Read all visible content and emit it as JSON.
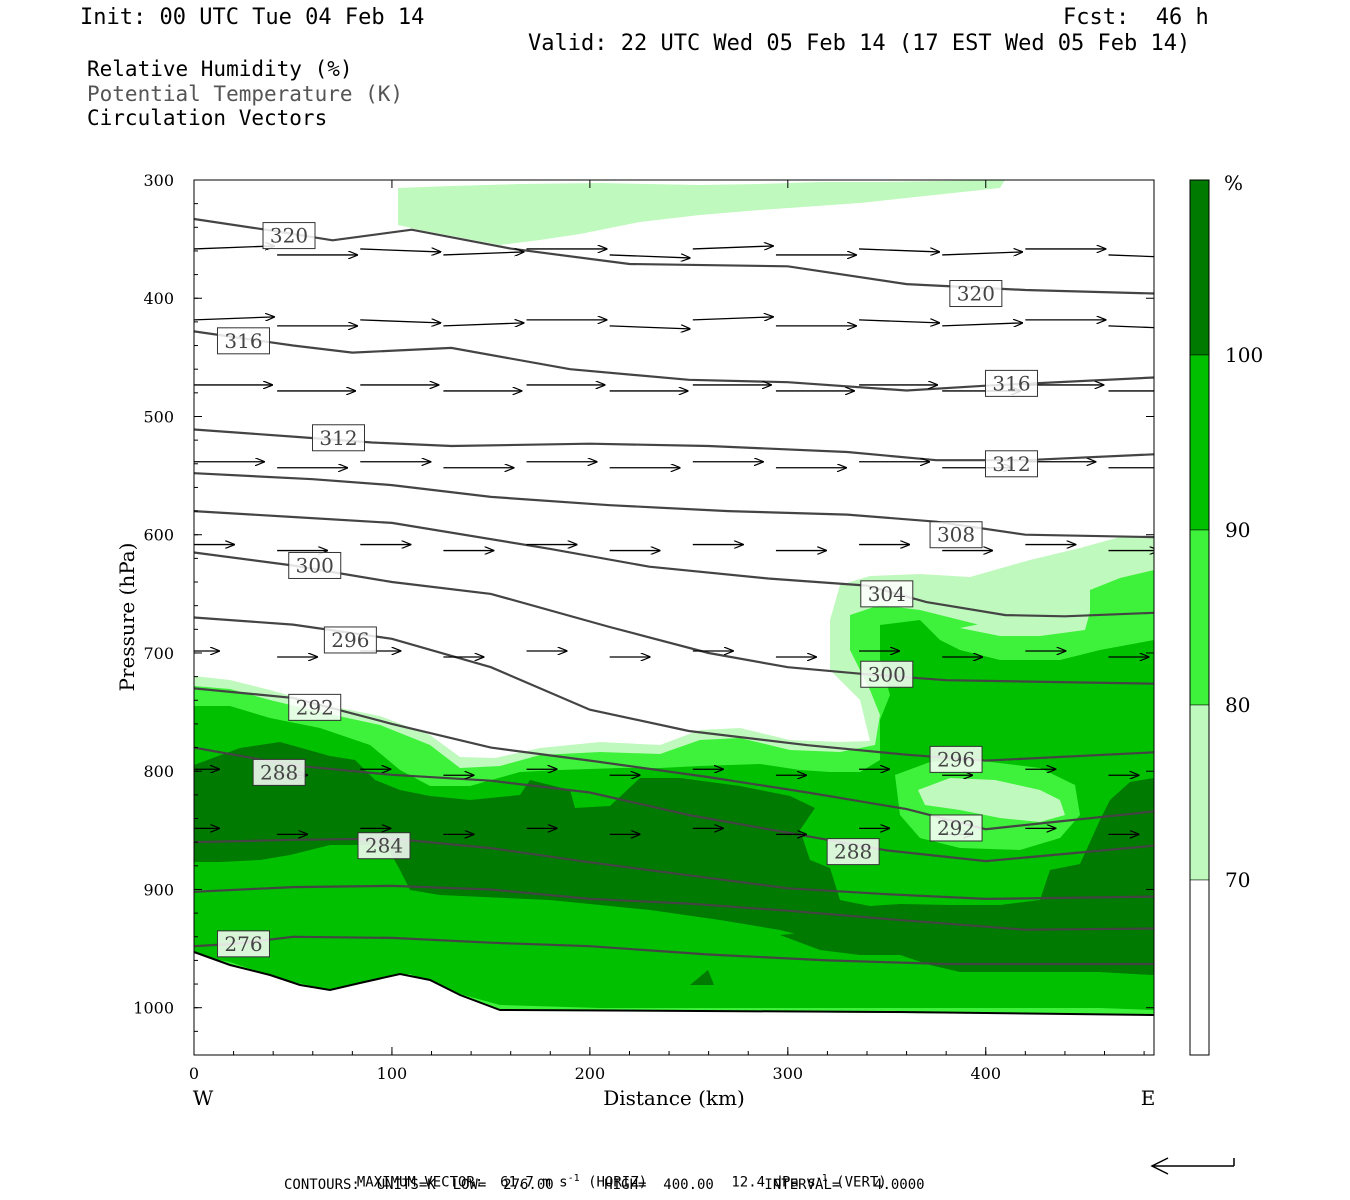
{
  "header": {
    "init": "Init: 00 UTC Tue 04 Feb 14",
    "fcst": "Fcst:  46 h",
    "valid": "Valid: 22 UTC Wed 05 Feb 14 (17 EST Wed 05 Feb 14)"
  },
  "fields": [
    {
      "label": "Relative Humidity (%)",
      "color": "#000000"
    },
    {
      "label": "Potential Temperature (K)",
      "color": "#555555"
    },
    {
      "label": "Circulation Vectors",
      "color": "#000000"
    }
  ],
  "chart_data": {
    "type": "contour",
    "xlabel": "Distance (km)",
    "ylabel": "Pressure (hPa)",
    "xlim": [
      0,
      485
    ],
    "ylim": [
      300,
      1040
    ],
    "x_ticks": [
      0,
      100,
      200,
      300,
      400
    ],
    "y_ticks": [
      300,
      400,
      500,
      600,
      700,
      800,
      900,
      1000
    ],
    "x_end_labels": {
      "left": "W",
      "right": "E"
    },
    "colorbar": {
      "unit": "%",
      "levels": [
        70,
        80,
        90,
        100
      ],
      "colors": [
        "#ffffff",
        "#c0f9bd",
        "#3ef23b",
        "#00c000",
        "#007a00"
      ]
    },
    "theta_contours": [
      {
        "label": "320",
        "points": [
          [
            0,
            333
          ],
          [
            40,
            343
          ],
          [
            70,
            351
          ],
          [
            110,
            342
          ],
          [
            160,
            358
          ],
          [
            220,
            371
          ],
          [
            300,
            373
          ],
          [
            360,
            388
          ],
          [
            420,
            393
          ],
          [
            485,
            396
          ]
        ],
        "labels_at": [
          [
            48,
            347
          ],
          [
            395,
            396
          ]
        ]
      },
      {
        "label": "316",
        "points": [
          [
            0,
            428
          ],
          [
            50,
            440
          ],
          [
            80,
            446
          ],
          [
            130,
            442
          ],
          [
            190,
            460
          ],
          [
            250,
            469
          ],
          [
            300,
            471
          ],
          [
            360,
            478
          ],
          [
            400,
            474
          ],
          [
            485,
            467
          ]
        ],
        "labels_at": [
          [
            25,
            436
          ],
          [
            413,
            472
          ]
        ]
      },
      {
        "label": "312",
        "points": [
          [
            0,
            511
          ],
          [
            50,
            517
          ],
          [
            90,
            522
          ],
          [
            130,
            525
          ],
          [
            200,
            523
          ],
          [
            260,
            525
          ],
          [
            330,
            530
          ],
          [
            375,
            537
          ],
          [
            420,
            537
          ],
          [
            485,
            532
          ]
        ],
        "labels_at": [
          [
            73,
            518
          ],
          [
            413,
            540
          ]
        ]
      },
      {
        "label": "308",
        "points": [
          [
            0,
            548
          ],
          [
            60,
            553
          ],
          [
            100,
            558
          ],
          [
            150,
            568
          ],
          [
            210,
            575
          ],
          [
            270,
            580
          ],
          [
            330,
            583
          ],
          [
            375,
            589
          ],
          [
            420,
            600
          ],
          [
            485,
            602
          ]
        ],
        "labels_at": [
          [
            385,
            600
          ]
        ]
      },
      {
        "label": "304",
        "points": [
          [
            0,
            580
          ],
          [
            50,
            585
          ],
          [
            100,
            590
          ],
          [
            180,
            612
          ],
          [
            230,
            627
          ],
          [
            290,
            637
          ],
          [
            340,
            643
          ],
          [
            370,
            657
          ],
          [
            410,
            668
          ],
          [
            440,
            669
          ],
          [
            485,
            666
          ]
        ],
        "labels_at": [
          [
            350,
            650
          ]
        ]
      },
      {
        "label": "300",
        "points": [
          [
            0,
            615
          ],
          [
            50,
            626
          ],
          [
            100,
            640
          ],
          [
            150,
            650
          ],
          [
            210,
            678
          ],
          [
            260,
            700
          ],
          [
            300,
            712
          ],
          [
            340,
            718
          ],
          [
            380,
            723
          ],
          [
            485,
            726
          ]
        ],
        "labels_at": [
          [
            61,
            626
          ],
          [
            350,
            718
          ]
        ]
      },
      {
        "label": "296",
        "points": [
          [
            0,
            670
          ],
          [
            50,
            676
          ],
          [
            100,
            688
          ],
          [
            150,
            712
          ],
          [
            200,
            748
          ],
          [
            250,
            766
          ],
          [
            310,
            778
          ],
          [
            360,
            786
          ],
          [
            400,
            791
          ],
          [
            485,
            784
          ]
        ],
        "labels_at": [
          [
            79,
            689
          ],
          [
            385,
            790
          ]
        ]
      },
      {
        "label": "292",
        "points": [
          [
            0,
            730
          ],
          [
            50,
            738
          ],
          [
            100,
            760
          ],
          [
            150,
            780
          ],
          [
            200,
            791
          ],
          [
            260,
            805
          ],
          [
            310,
            818
          ],
          [
            360,
            832
          ],
          [
            400,
            849
          ],
          [
            485,
            834
          ]
        ],
        "labels_at": [
          [
            61,
            746
          ],
          [
            385,
            848
          ]
        ]
      },
      {
        "label": "288",
        "points": [
          [
            0,
            780
          ],
          [
            50,
            795
          ],
          [
            100,
            803
          ],
          [
            150,
            808
          ],
          [
            200,
            818
          ],
          [
            250,
            837
          ],
          [
            300,
            852
          ],
          [
            350,
            867
          ],
          [
            400,
            876
          ],
          [
            485,
            863
          ]
        ],
        "labels_at": [
          [
            43,
            801
          ],
          [
            333,
            868
          ]
        ]
      },
      {
        "label": "284",
        "points": [
          [
            0,
            860
          ],
          [
            50,
            858
          ],
          [
            100,
            857
          ],
          [
            150,
            865
          ],
          [
            200,
            877
          ],
          [
            250,
            888
          ],
          [
            300,
            899
          ],
          [
            350,
            904
          ],
          [
            400,
            908
          ],
          [
            485,
            906
          ]
        ],
        "labels_at": [
          [
            96,
            863
          ]
        ]
      },
      {
        "label": "",
        "points": [
          [
            0,
            902
          ],
          [
            50,
            898
          ],
          [
            100,
            897
          ],
          [
            150,
            900
          ],
          [
            200,
            908
          ],
          [
            250,
            912
          ],
          [
            300,
            918
          ],
          [
            350,
            925
          ],
          [
            420,
            934
          ],
          [
            485,
            933
          ]
        ],
        "labels_at": []
      },
      {
        "label": "276",
        "points": [
          [
            0,
            948
          ],
          [
            20,
            946
          ],
          [
            50,
            940
          ],
          [
            100,
            941
          ],
          [
            150,
            945
          ],
          [
            200,
            948
          ],
          [
            260,
            955
          ],
          [
            320,
            960
          ],
          [
            380,
            963
          ],
          [
            485,
            963
          ]
        ],
        "labels_at": [
          [
            25,
            946
          ]
        ]
      }
    ],
    "vectors_note": "Circulation vectors: predominantly west-to-east (left-to-right) flow"
  },
  "footer": {
    "max_vector": "MAXIMUM VECTOR:  61.7 m s",
    "horiz": "(HORIZ)",
    "vert_val": "12.4 dPa s",
    "vert": "(VERT)",
    "contours": "CONTOURS:  UNITS=K  LOW=  276.00      HIGH=  400.00      INTERVAL=    4.0000"
  }
}
